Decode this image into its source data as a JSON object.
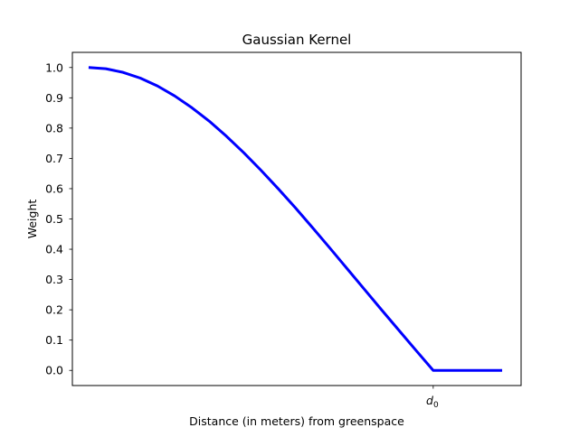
{
  "chart_data": {
    "type": "line",
    "title": "Gaussian Kernel",
    "xlabel": "Distance (in meters) from greenspace",
    "ylabel": "Weight",
    "ylim": [
      -0.05,
      1.05
    ],
    "xlim": [
      -0.0471,
      1.255
    ],
    "yticks": [
      "0.0",
      "0.1",
      "0.2",
      "0.3",
      "0.4",
      "0.5",
      "0.6",
      "0.7",
      "0.8",
      "0.9",
      "1.0"
    ],
    "xticks": [
      {
        "value": 1.0,
        "label_main": "d",
        "label_sub": "0"
      }
    ],
    "grid": false,
    "legend": "none",
    "series": [
      {
        "color": "#0000ff",
        "points": [
          [
            0.0,
            1.0
          ],
          [
            0.05,
            0.996
          ],
          [
            0.1,
            0.984
          ],
          [
            0.15,
            0.965
          ],
          [
            0.2,
            0.939
          ],
          [
            0.25,
            0.906
          ],
          [
            0.3,
            0.867
          ],
          [
            0.35,
            0.823
          ],
          [
            0.4,
            0.773
          ],
          [
            0.45,
            0.719
          ],
          [
            0.5,
            0.661
          ],
          [
            0.55,
            0.6
          ],
          [
            0.6,
            0.537
          ],
          [
            0.65,
            0.471
          ],
          [
            0.7,
            0.404
          ],
          [
            0.75,
            0.336
          ],
          [
            0.8,
            0.268
          ],
          [
            0.85,
            0.2
          ],
          [
            0.9,
            0.133
          ],
          [
            0.95,
            0.066
          ],
          [
            1.0,
            0.0
          ],
          [
            1.05,
            0.0
          ],
          [
            1.1,
            0.0
          ],
          [
            1.15,
            0.0
          ],
          [
            1.2,
            0.0
          ]
        ]
      }
    ]
  }
}
